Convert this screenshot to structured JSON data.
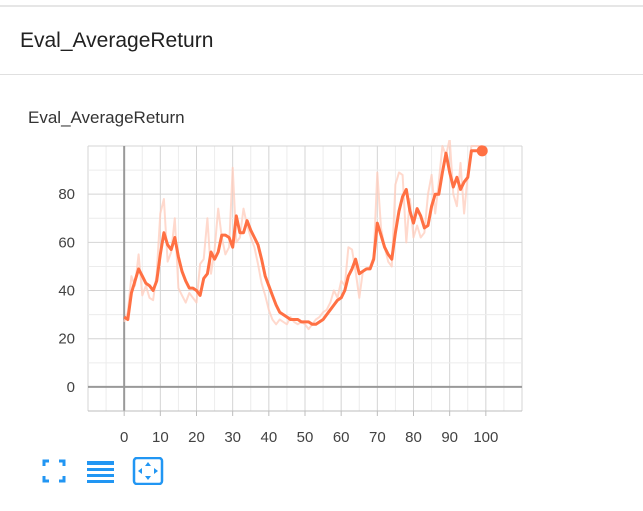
{
  "card": {
    "title": "Eval_AverageReturn"
  },
  "chart_title": "Eval_AverageReturn",
  "toolbar": {
    "buttons": [
      {
        "name": "expand-button",
        "icon": "fullscreen-icon"
      },
      {
        "name": "toggle-log-button",
        "icon": "list-icon"
      },
      {
        "name": "fit-domain-button",
        "icon": "fit-domain-icon"
      }
    ]
  },
  "colors": {
    "smoothed": "#ff7043",
    "raw": "#ffccbc",
    "accent": "#2196f3",
    "grid": "#dddddd",
    "axis": "#999999"
  },
  "chart_data": {
    "type": "line",
    "title": "Eval_AverageReturn",
    "xlabel": "",
    "ylabel": "",
    "xlim": [
      -10,
      110
    ],
    "ylim": [
      -10,
      100
    ],
    "x_ticks": [
      0,
      10,
      20,
      30,
      40,
      50,
      60,
      70,
      80,
      90,
      100
    ],
    "y_ticks": [
      0,
      20,
      40,
      60,
      80
    ],
    "grid": true,
    "series": [
      {
        "role": "raw",
        "x": [
          0,
          1,
          2,
          3,
          4,
          5,
          6,
          7,
          8,
          9,
          10,
          11,
          12,
          13,
          14,
          15,
          16,
          17,
          18,
          19,
          20,
          21,
          22,
          23,
          24,
          25,
          26,
          27,
          28,
          29,
          30,
          31,
          32,
          33,
          34,
          35,
          36,
          37,
          38,
          39,
          40,
          41,
          42,
          43,
          44,
          45,
          46,
          47,
          48,
          49,
          50,
          51,
          52,
          53,
          54,
          55,
          56,
          57,
          58,
          59,
          60,
          61,
          62,
          63,
          64,
          65,
          66,
          67,
          68,
          69,
          70,
          71,
          72,
          73,
          74,
          75,
          76,
          77,
          78,
          79,
          80,
          81,
          82,
          83,
          84,
          85,
          86,
          87,
          88,
          89,
          90,
          91,
          92,
          93,
          94,
          95,
          96,
          97,
          98,
          99
        ],
        "y": [
          27,
          31,
          46,
          42,
          55,
          38,
          42,
          37,
          36,
          47,
          72,
          78,
          52,
          56,
          70,
          41,
          38,
          35,
          39,
          37,
          35,
          51,
          53,
          70,
          47,
          57,
          74,
          62,
          55,
          58,
          91,
          60,
          62,
          74,
          67,
          62,
          58,
          51,
          43,
          38,
          32,
          28,
          26,
          28,
          27,
          26,
          29,
          27,
          26,
          27,
          26,
          24,
          26,
          28,
          29,
          31,
          32,
          35,
          40,
          37,
          44,
          42,
          58,
          57,
          48,
          37,
          48,
          49,
          50,
          54,
          89,
          66,
          58,
          52,
          50,
          84,
          89,
          88,
          60,
          78,
          62,
          67,
          62,
          64,
          80,
          88,
          72,
          85,
          100,
          96,
          103,
          80,
          75,
          93,
          72,
          88,
          100,
          100,
          100,
          100
        ]
      },
      {
        "role": "smoothed",
        "x": [
          0,
          1,
          2,
          3,
          4,
          5,
          6,
          7,
          8,
          9,
          10,
          11,
          12,
          13,
          14,
          15,
          16,
          17,
          18,
          19,
          20,
          21,
          22,
          23,
          24,
          25,
          26,
          27,
          28,
          29,
          30,
          31,
          32,
          33,
          34,
          35,
          36,
          37,
          38,
          39,
          40,
          41,
          42,
          43,
          44,
          45,
          46,
          47,
          48,
          49,
          50,
          51,
          52,
          53,
          54,
          55,
          56,
          57,
          58,
          59,
          60,
          61,
          62,
          63,
          64,
          65,
          66,
          67,
          68,
          69,
          70,
          71,
          72,
          73,
          74,
          75,
          76,
          77,
          78,
          79,
          80,
          81,
          82,
          83,
          84,
          85,
          86,
          87,
          88,
          89,
          90,
          91,
          92,
          93,
          94,
          95,
          96,
          97,
          98,
          99
        ],
        "y": [
          29,
          28,
          39,
          44,
          49,
          46,
          43,
          42,
          40,
          44,
          55,
          64,
          59,
          57,
          62,
          54,
          48,
          44,
          41,
          41,
          40,
          38,
          45,
          47,
          56,
          53,
          56,
          63,
          63,
          62,
          58,
          71,
          64,
          64,
          69,
          65,
          62,
          59,
          53,
          46,
          42,
          38,
          34,
          31,
          30,
          29,
          28,
          28,
          28,
          27,
          27,
          27,
          26,
          26,
          27,
          28,
          30,
          32,
          34,
          36,
          37,
          40,
          46,
          49,
          53,
          47,
          48,
          49,
          49,
          53,
          68,
          63,
          58,
          55,
          53,
          64,
          73,
          79,
          82,
          73,
          68,
          74,
          71,
          66,
          67,
          75,
          80,
          80,
          89,
          97,
          89,
          83,
          87,
          82,
          85,
          87,
          98,
          98,
          98,
          98
        ]
      }
    ]
  }
}
